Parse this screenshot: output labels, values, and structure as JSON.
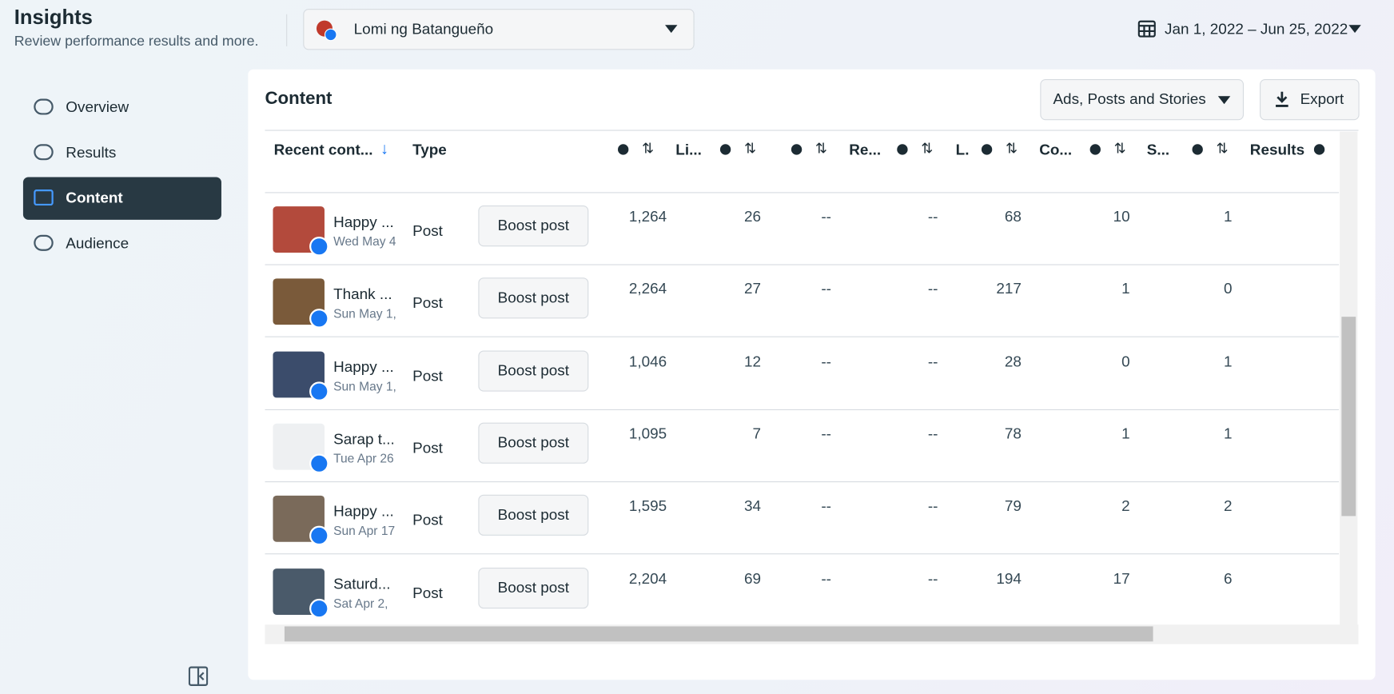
{
  "header": {
    "title": "Insights",
    "subtitle": "Review performance results and more.",
    "page": "Lomi ng Batangueño",
    "date_range": "Jan 1, 2022 – Jun 25, 2022"
  },
  "nav": [
    "Overview",
    "Results",
    "Content",
    "Audience"
  ],
  "content": {
    "title": "Content",
    "filter": "Ads, Posts and Stories",
    "export": "Export",
    "table": {
      "headers": [
        "Recent cont...",
        "Type",
        "Li...",
        "Re...",
        "L.",
        "Co...",
        "S...",
        "Results"
      ],
      "rows": [
        {
          "title": "Happy ...",
          "date": "Wed May 4",
          "type": "Post",
          "action": "Boost post",
          "values": [
            "1,264",
            "26",
            "--",
            "--",
            "68",
            "10",
            "1"
          ]
        },
        {
          "title": "Thank ...",
          "date": "Sun May 1,",
          "type": "Post",
          "action": "Boost post",
          "values": [
            "2,264",
            "27",
            "--",
            "--",
            "217",
            "1",
            "0"
          ]
        },
        {
          "title": "Happy ...",
          "date": "Sun May 1,",
          "type": "Post",
          "action": "Boost post",
          "values": [
            "1,046",
            "12",
            "--",
            "--",
            "28",
            "0",
            "1"
          ]
        },
        {
          "title": "Sarap t...",
          "date": "Tue Apr 26",
          "type": "Post",
          "action": "Boost post",
          "values": [
            "1,095",
            "7",
            "--",
            "--",
            "78",
            "1",
            "1"
          ]
        },
        {
          "title": "Happy ...",
          "date": "Sun Apr 17",
          "type": "Post",
          "action": "Boost post",
          "values": [
            "1,595",
            "34",
            "--",
            "--",
            "79",
            "2",
            "2"
          ]
        },
        {
          "title": "Saturd...",
          "date": "Sat Apr 2,",
          "type": "Post",
          "action": "Boost post",
          "values": [
            "2,204",
            "69",
            "--",
            "--",
            "194",
            "17",
            "6"
          ]
        }
      ]
    }
  }
}
